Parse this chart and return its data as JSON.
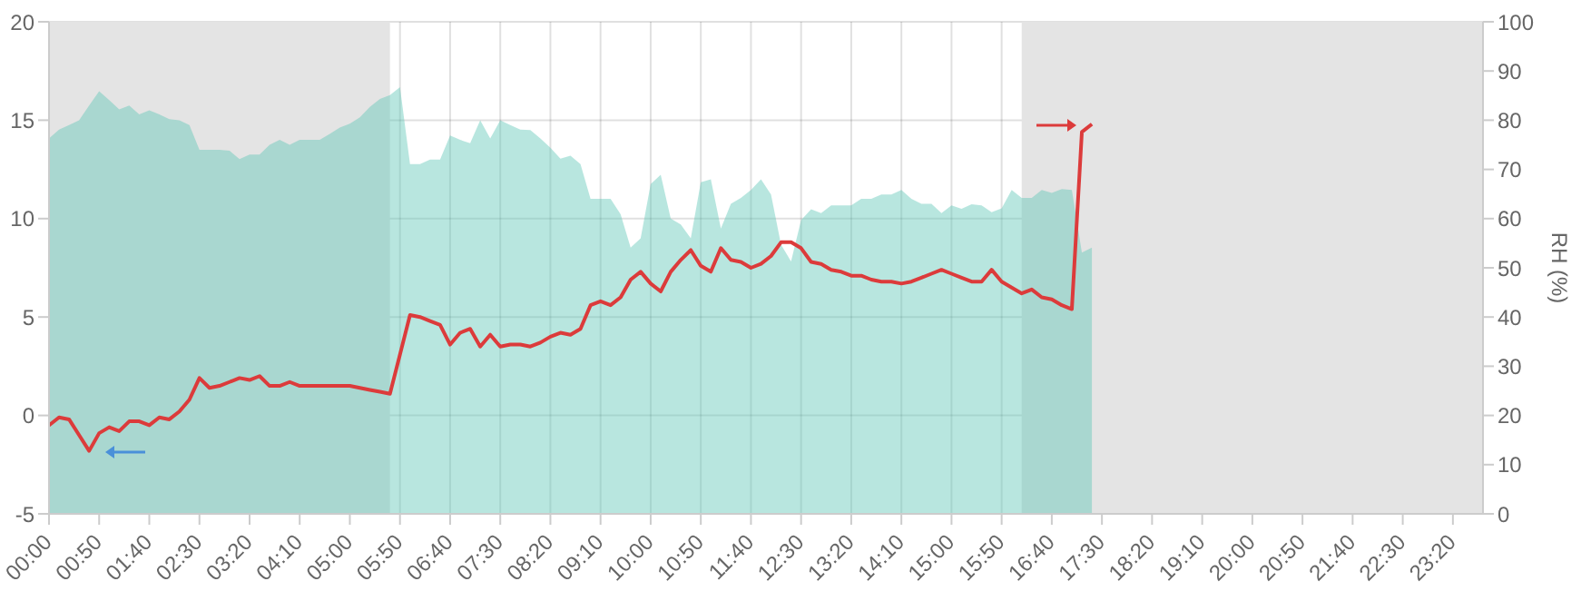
{
  "chart_data": {
    "type": "line",
    "y2label": "RH (%)",
    "x": [
      0,
      0.1667,
      0.3333,
      0.5,
      0.6667,
      0.8333,
      1,
      1.1667,
      1.3333,
      1.5,
      1.6667,
      1.8333,
      2,
      2.1667,
      2.3333,
      2.5,
      2.6667,
      2.8333,
      3,
      3.1667,
      3.3333,
      3.5,
      3.6667,
      3.8333,
      4,
      4.1667,
      4.3333,
      4.5,
      4.6667,
      4.8333,
      5,
      5.1667,
      5.3333,
      5.5,
      5.6667,
      5.8333,
      6,
      6.1667,
      6.3333,
      6.5,
      6.6667,
      6.8333,
      7,
      7.1667,
      7.3333,
      7.5,
      7.6667,
      7.8333,
      8,
      8.1667,
      8.3333,
      8.5,
      8.6667,
      8.8333,
      9,
      9.1667,
      9.3333,
      9.5,
      9.6667,
      9.8333,
      10,
      10.1667,
      10.3333,
      10.5,
      10.6667,
      10.8333,
      11,
      11.1667,
      11.3333,
      11.5,
      11.6667,
      11.8333,
      12,
      12.1667,
      12.3333,
      12.5,
      12.6667,
      12.8333,
      13,
      13.1667,
      13.3333,
      13.5,
      13.6667,
      13.8333,
      14,
      14.1667,
      14.3333,
      14.5,
      14.6667,
      14.8333,
      15,
      15.1667,
      15.3333,
      15.5,
      15.6667,
      15.8333,
      16,
      16.1667,
      16.3333,
      16.5,
      16.6667,
      16.8333,
      17,
      17.1667,
      17.3333
    ],
    "series": [
      {
        "type": "area",
        "axis": "y2",
        "color": "#5ec6b6",
        "values": [
          76.3,
          78.1,
          79,
          80,
          83,
          85.9,
          84.1,
          82.2,
          83,
          81.2,
          82,
          81.2,
          80.2,
          80,
          79,
          74,
          74,
          74,
          73.8,
          72.1,
          73,
          73,
          75,
          76,
          75,
          76,
          76,
          76,
          77.2,
          78.5,
          79.3,
          80.6,
          82.7,
          84.3,
          85.1,
          86.7,
          71.1,
          71.1,
          72,
          72,
          76.9,
          76,
          75.3,
          80,
          76.3,
          80,
          79,
          78.1,
          78,
          76.3,
          74.4,
          72.2,
          72.8,
          71.1,
          64,
          64,
          64,
          60.9,
          54.1,
          56,
          67,
          68.9,
          60,
          58.8,
          56,
          67.4,
          68,
          58,
          63,
          64.2,
          65.8,
          68,
          64.9,
          54.7,
          51.3,
          59.7,
          61.9,
          61.1,
          62.7,
          62.7,
          62.7,
          64,
          64,
          64.9,
          64.9,
          65.8,
          64,
          63,
          63,
          61.1,
          62.7,
          62,
          62.9,
          62.7,
          61.3,
          62.1,
          65.8,
          64.2,
          64.2,
          65.8,
          65.2,
          66,
          65.8,
          53.1,
          54.1
        ]
      },
      {
        "color": "#dc3b3b",
        "values": [
          -0.5,
          -0.1,
          -0.2,
          -1.0,
          -1.8,
          -0.9,
          -0.6,
          -0.8,
          -0.3,
          -0.3,
          -0.5,
          -0.1,
          -0.2,
          0.2,
          0.8,
          1.9,
          1.4,
          1.5,
          1.7,
          1.9,
          1.8,
          2.0,
          1.5,
          1.5,
          1.7,
          1.5,
          1.5,
          1.5,
          1.5,
          1.5,
          1.5,
          1.4,
          1.3,
          1.2,
          1.1,
          3.1,
          5.1,
          5.0,
          4.8,
          4.6,
          3.6,
          4.2,
          4.4,
          3.5,
          4.1,
          3.5,
          3.6,
          3.6,
          3.5,
          3.7,
          4.0,
          4.2,
          4.1,
          4.4,
          5.6,
          5.8,
          5.6,
          6.0,
          6.9,
          7.3,
          6.7,
          6.3,
          7.3,
          7.9,
          8.4,
          7.6,
          7.3,
          8.5,
          7.9,
          7.8,
          7.5,
          7.7,
          8.1,
          8.8,
          8.8,
          8.5,
          7.8,
          7.7,
          7.4,
          7.3,
          7.1,
          7.1,
          6.9,
          6.8,
          6.8,
          6.7,
          6.8,
          7.0,
          7.2,
          7.4,
          7.2,
          7.0,
          6.8,
          6.8,
          7.4,
          6.8,
          6.5,
          6.2,
          6.4,
          6.0,
          5.9,
          5.6,
          5.4,
          14.4,
          14.8
        ]
      }
    ],
    "xlim": [
      0,
      23.8333
    ],
    "xticks": [
      {
        "value": 0,
        "label": "00:00"
      },
      {
        "value": 0.8333,
        "label": "00:50"
      },
      {
        "value": 1.6667,
        "label": "01:40"
      },
      {
        "value": 2.5,
        "label": "02:30"
      },
      {
        "value": 3.3333,
        "label": "03:20"
      },
      {
        "value": 4.1667,
        "label": "04:10"
      },
      {
        "value": 5,
        "label": "05:00"
      },
      {
        "value": 5.8333,
        "label": "05:50"
      },
      {
        "value": 6.6667,
        "label": "06:40"
      },
      {
        "value": 7.5,
        "label": "07:30"
      },
      {
        "value": 8.3333,
        "label": "08:20"
      },
      {
        "value": 9.1667,
        "label": "09:10"
      },
      {
        "value": 10,
        "label": "10:00"
      },
      {
        "value": 10.8333,
        "label": "10:50"
      },
      {
        "value": 11.6667,
        "label": "11:40"
      },
      {
        "value": 12.5,
        "label": "12:30"
      },
      {
        "value": 13.3333,
        "label": "13:20"
      },
      {
        "value": 14.1667,
        "label": "14:10"
      },
      {
        "value": 15,
        "label": "15:00"
      },
      {
        "value": 15.8333,
        "label": "15:50"
      },
      {
        "value": 16.6667,
        "label": "16:40"
      },
      {
        "value": 17.5,
        "label": "17:30"
      },
      {
        "value": 18.3333,
        "label": "18:20"
      },
      {
        "value": 19.1667,
        "label": "19:10"
      },
      {
        "value": 20,
        "label": "20:00"
      },
      {
        "value": 20.8333,
        "label": "20:50"
      },
      {
        "value": 21.6667,
        "label": "21:40"
      },
      {
        "value": 22.5,
        "label": "22:30"
      },
      {
        "value": 23.3333,
        "label": "23:20"
      }
    ],
    "ylim": [
      -5,
      20
    ],
    "yticks": [
      -5,
      0,
      5,
      10,
      15,
      20
    ],
    "y2lim": [
      0,
      100
    ],
    "y2ticks": [
      0,
      10,
      20,
      30,
      40,
      50,
      60,
      70,
      80,
      90,
      100
    ],
    "bands": [
      {
        "axis": "x",
        "from": 0,
        "to": 5.6667,
        "color": "#e4e4e4"
      },
      {
        "axis": "x",
        "from": 16.1667,
        "to": 23.8333,
        "color": "#e4e4e4"
      }
    ],
    "grid": true
  }
}
